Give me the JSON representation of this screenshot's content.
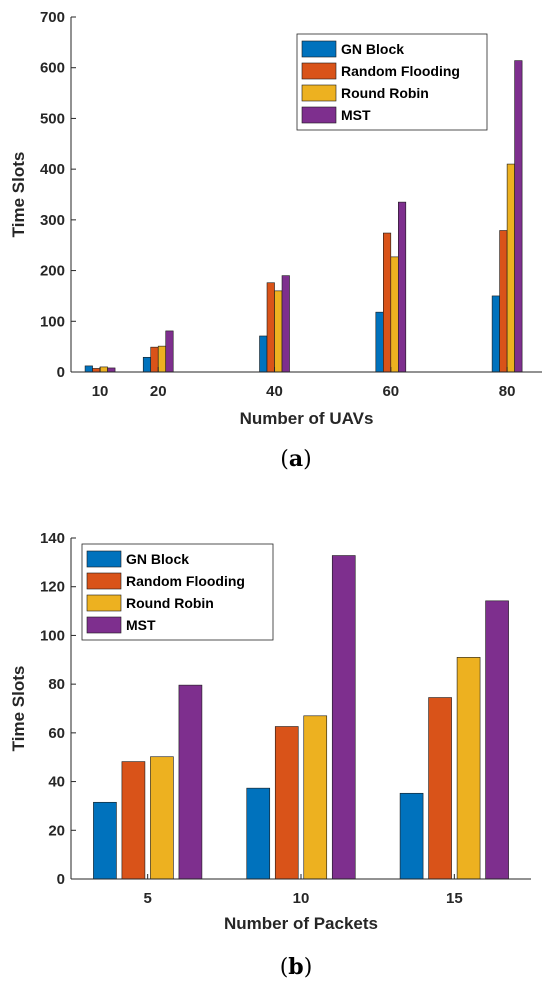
{
  "chart_data": [
    {
      "type": "bar",
      "caption": "(a)",
      "caption_letter": "a",
      "xlabel": "Number of UAVs",
      "ylabel": "Time Slots",
      "x": [
        10,
        20,
        40,
        60,
        80
      ],
      "xlim": [
        5,
        86
      ],
      "ylim": [
        0,
        700
      ],
      "yticks": [
        0,
        100,
        200,
        300,
        400,
        500,
        600,
        700
      ],
      "grid": false,
      "legend_position": "top-right",
      "series": [
        {
          "name": "GN Block",
          "color": "#0072BD",
          "values": [
            12,
            29,
            71,
            118,
            150
          ]
        },
        {
          "name": "Random Flooding",
          "color": "#D95319",
          "values": [
            7,
            49,
            176,
            274,
            279
          ]
        },
        {
          "name": "Round Robin",
          "color": "#EDB120",
          "values": [
            10,
            51,
            160,
            227,
            410
          ]
        },
        {
          "name": "MST",
          "color": "#7E2F8E",
          "values": [
            8,
            81,
            190,
            335,
            614
          ]
        }
      ]
    },
    {
      "type": "bar",
      "caption": "(b)",
      "caption_letter": "b",
      "xlabel": "Number of Packets",
      "ylabel": "Time Slots",
      "categories": [
        "5",
        "10",
        "15"
      ],
      "ylim": [
        0,
        140
      ],
      "yticks": [
        0,
        20,
        40,
        60,
        80,
        100,
        120,
        140
      ],
      "grid": false,
      "legend_position": "top-left",
      "series": [
        {
          "name": "GN Block",
          "color": "#0072BD",
          "values": [
            31.5,
            37.3,
            35.2
          ]
        },
        {
          "name": "Random Flooding",
          "color": "#D95319",
          "values": [
            48.2,
            62.6,
            74.5
          ]
        },
        {
          "name": "Round Robin",
          "color": "#EDB120",
          "values": [
            50.2,
            67,
            91
          ]
        },
        {
          "name": "MST",
          "color": "#7E2F8E",
          "values": [
            79.6,
            132.8,
            114.2
          ]
        }
      ]
    }
  ]
}
